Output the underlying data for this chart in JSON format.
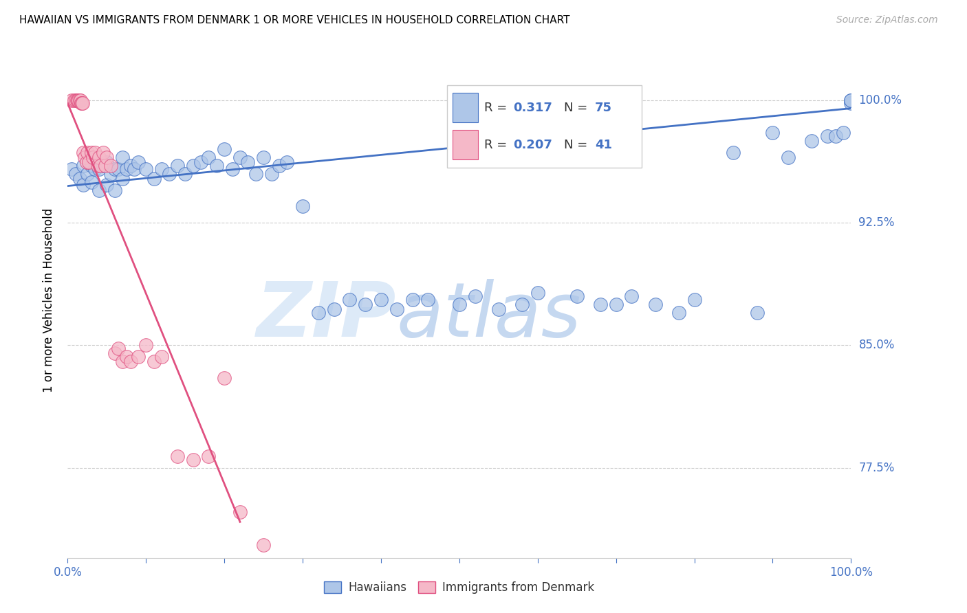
{
  "title": "HAWAIIAN VS IMMIGRANTS FROM DENMARK 1 OR MORE VEHICLES IN HOUSEHOLD CORRELATION CHART",
  "source": "Source: ZipAtlas.com",
  "ylabel": "1 or more Vehicles in Household",
  "ytick_values": [
    0.775,
    0.85,
    0.925,
    1.0
  ],
  "ytick_labels": [
    "77.5%",
    "85.0%",
    "92.5%",
    "100.0%"
  ],
  "xrange": [
    0.0,
    1.0
  ],
  "yrange": [
    0.72,
    1.035
  ],
  "legend_r1_val": "0.317",
  "legend_n1_val": "75",
  "legend_r2_val": "0.207",
  "legend_n2_val": "41",
  "hawaiian_color": "#aec6e8",
  "denmark_color": "#f5b8c8",
  "line_hawaiian_color": "#4472c4",
  "line_denmark_color": "#e05080",
  "hawaiian_x": [
    0.005,
    0.01,
    0.015,
    0.02,
    0.02,
    0.025,
    0.03,
    0.03,
    0.035,
    0.04,
    0.04,
    0.045,
    0.05,
    0.05,
    0.055,
    0.06,
    0.06,
    0.065,
    0.07,
    0.07,
    0.075,
    0.08,
    0.085,
    0.09,
    0.1,
    0.11,
    0.12,
    0.13,
    0.14,
    0.15,
    0.16,
    0.17,
    0.18,
    0.19,
    0.2,
    0.21,
    0.22,
    0.23,
    0.24,
    0.25,
    0.26,
    0.27,
    0.28,
    0.3,
    0.32,
    0.34,
    0.36,
    0.38,
    0.4,
    0.42,
    0.44,
    0.46,
    0.5,
    0.52,
    0.55,
    0.58,
    0.6,
    0.65,
    0.68,
    0.7,
    0.72,
    0.75,
    0.78,
    0.8,
    0.85,
    0.88,
    0.9,
    0.92,
    0.95,
    0.97,
    0.98,
    0.99,
    1.0,
    1.0,
    1.0
  ],
  "hawaiian_y": [
    0.958,
    0.955,
    0.952,
    0.96,
    0.948,
    0.955,
    0.96,
    0.95,
    0.958,
    0.958,
    0.945,
    0.96,
    0.962,
    0.948,
    0.955,
    0.958,
    0.945,
    0.958,
    0.965,
    0.952,
    0.958,
    0.96,
    0.958,
    0.962,
    0.958,
    0.952,
    0.958,
    0.955,
    0.96,
    0.955,
    0.96,
    0.962,
    0.965,
    0.96,
    0.97,
    0.958,
    0.965,
    0.962,
    0.955,
    0.965,
    0.955,
    0.96,
    0.962,
    0.935,
    0.87,
    0.872,
    0.878,
    0.875,
    0.878,
    0.872,
    0.878,
    0.878,
    0.875,
    0.88,
    0.872,
    0.875,
    0.882,
    0.88,
    0.875,
    0.875,
    0.88,
    0.875,
    0.87,
    0.878,
    0.968,
    0.87,
    0.98,
    0.965,
    0.975,
    0.978,
    0.978,
    0.98,
    0.998,
    1.0,
    1.0
  ],
  "denmark_x": [
    0.005,
    0.008,
    0.01,
    0.012,
    0.013,
    0.014,
    0.015,
    0.016,
    0.017,
    0.018,
    0.019,
    0.02,
    0.022,
    0.024,
    0.025,
    0.027,
    0.03,
    0.032,
    0.035,
    0.038,
    0.04,
    0.042,
    0.045,
    0.048,
    0.05,
    0.055,
    0.06,
    0.065,
    0.07,
    0.075,
    0.08,
    0.09,
    0.1,
    0.11,
    0.12,
    0.14,
    0.16,
    0.18,
    0.2,
    0.22,
    0.25
  ],
  "denmark_y": [
    1.0,
    1.0,
    1.0,
    1.0,
    1.0,
    1.0,
    1.0,
    1.0,
    0.998,
    0.998,
    0.998,
    0.968,
    0.965,
    0.962,
    0.968,
    0.962,
    0.968,
    0.965,
    0.968,
    0.96,
    0.965,
    0.96,
    0.968,
    0.96,
    0.965,
    0.96,
    0.845,
    0.848,
    0.84,
    0.843,
    0.84,
    0.843,
    0.85,
    0.84,
    0.843,
    0.782,
    0.78,
    0.782,
    0.83,
    0.748,
    0.728
  ],
  "line_h_x0": 0.0,
  "line_h_y0": 0.9475,
  "line_h_x1": 1.0,
  "line_h_y1": 0.995,
  "line_d_x0": 0.0,
  "line_d_y0": 0.998,
  "line_d_x1": 0.22,
  "line_d_y1": 0.742
}
